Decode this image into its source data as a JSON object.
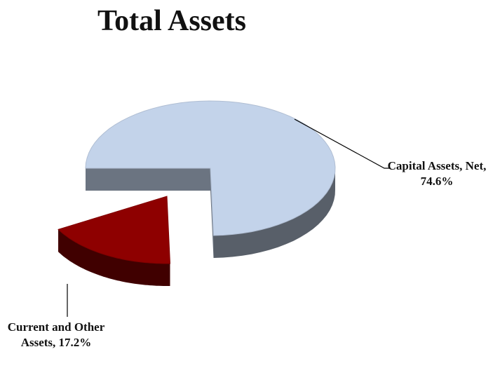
{
  "chart_data": {
    "type": "pie",
    "title": "Total Assets",
    "categories": [
      "Capital Assets, Net",
      "Current and Other Assets"
    ],
    "values": [
      74.6,
      17.2
    ],
    "value_labels": [
      "74.6%",
      "17.2%"
    ],
    "colors": [
      "#c3d3ea",
      "#8e0000"
    ]
  }
}
